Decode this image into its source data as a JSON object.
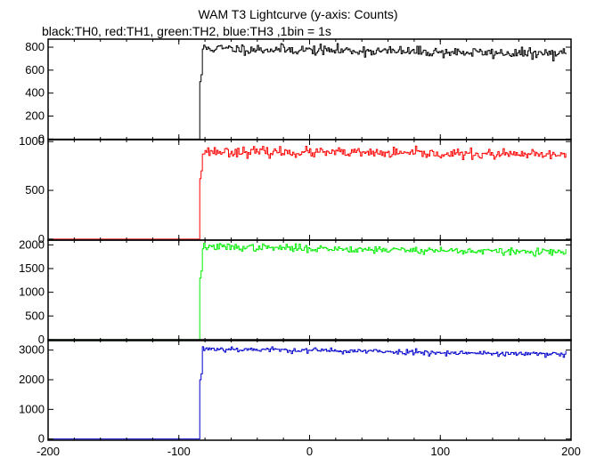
{
  "title": "WAM T3 Lightcurve (y-axis: Counts)",
  "subtitle": "black:TH0, red:TH1, green:TH2, blue:TH3 ,1bin = 1s",
  "chart_data": {
    "type": "line",
    "title": "WAM T3 Lightcurve (y-axis: Counts)",
    "xlabel": "",
    "ylabel": "",
    "xlim": [
      -200,
      200
    ],
    "x_ticks": [
      -200,
      -100,
      0,
      100,
      200
    ],
    "bin_seconds": 1,
    "grid": false,
    "panels": [
      {
        "name": "TH0",
        "color": "#000000",
        "ylim": [
          -5,
          870
        ],
        "y_ticks": [
          0,
          200,
          400,
          600,
          800
        ],
        "pre_level": 0,
        "onset_x": -84,
        "onset_levels": [
          500,
          560
        ],
        "post_start": 790,
        "post_end": 740,
        "noise": 22,
        "seed": 11
      },
      {
        "name": "TH1",
        "color": "#ff0000",
        "ylim": [
          -10,
          1020
        ],
        "y_ticks": [
          0,
          500,
          1000
        ],
        "pre_level": 0,
        "onset_x": -84,
        "onset_levels": [
          620,
          700
        ],
        "post_start": 900,
        "post_end": 860,
        "noise": 25,
        "seed": 23
      },
      {
        "name": "TH2",
        "color": "#00ee00",
        "ylim": [
          -20,
          2100
        ],
        "y_ticks": [
          0,
          500,
          1000,
          1500,
          2000
        ],
        "pre_level": 0,
        "onset_x": -84,
        "onset_levels": [
          1300,
          1450
        ],
        "post_start": 1960,
        "post_end": 1840,
        "noise": 38,
        "seed": 37
      },
      {
        "name": "TH3",
        "color": "#0000cc",
        "ylim": [
          -40,
          3350
        ],
        "y_ticks": [
          0,
          1000,
          2000,
          3000
        ],
        "pre_level": 0,
        "onset_x": -84,
        "onset_levels": [
          2000,
          2200
        ],
        "post_start": 3050,
        "post_end": 2850,
        "noise": 45,
        "seed": 53
      }
    ]
  }
}
